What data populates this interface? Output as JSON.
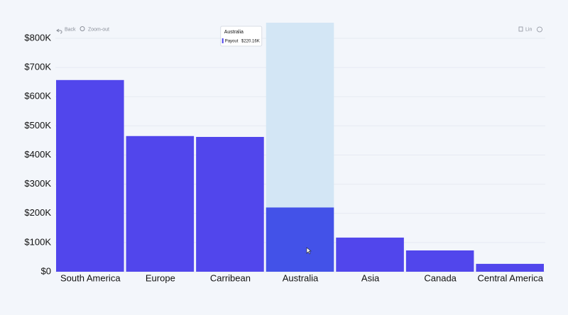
{
  "chart_data": {
    "type": "bar",
    "toolbar": {
      "back": "Back",
      "zoom_out": "Zoom-out",
      "scale": "Lin"
    },
    "categories": [
      "South America",
      "Europe",
      "Carribean",
      "Australia",
      "Asia",
      "Canada",
      "Central America"
    ],
    "series": [
      {
        "name": "Payout",
        "color": "#5146ec",
        "hover_color": "#4352e8",
        "values": [
          657000,
          465000,
          462000,
          220160,
          117000,
          73000,
          27000
        ],
        "value_labels": [
          null,
          null,
          null,
          "$220.16K",
          null,
          null,
          null
        ]
      }
    ],
    "ylim": [
      0,
      800000
    ],
    "yticks": [
      {
        "value": 0,
        "label": "$0"
      },
      {
        "value": 100000,
        "label": "$100K"
      },
      {
        "value": 200000,
        "label": "$200K"
      },
      {
        "value": 300000,
        "label": "$300K"
      },
      {
        "value": 400000,
        "label": "$400K"
      },
      {
        "value": 500000,
        "label": "$500K"
      },
      {
        "value": 600000,
        "label": "$600K"
      },
      {
        "value": 700000,
        "label": "$700K"
      },
      {
        "value": 800000,
        "label": "$800K"
      }
    ],
    "grid": true
  }
}
